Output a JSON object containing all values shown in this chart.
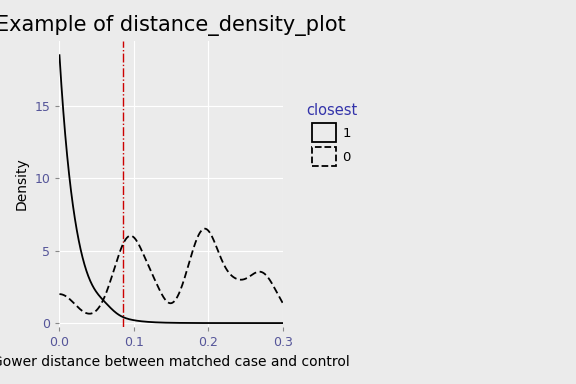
{
  "title": "Example of distance_density_plot",
  "xlabel": "Gower distance between matched case and control",
  "ylabel": "Density",
  "legend_title": "closest",
  "legend_labels": [
    "1",
    "0"
  ],
  "vline_x": 0.085,
  "vline_color": "#CC0000",
  "xlim": [
    0.0,
    0.3
  ],
  "ylim": [
    -0.3,
    19.5
  ],
  "xticks": [
    0.0,
    0.1,
    0.2,
    0.3
  ],
  "yticks": [
    0,
    5,
    10,
    15
  ],
  "bg_color": "#EBEBEB",
  "grid_color": "#FFFFFF",
  "line_color": "#000000",
  "title_fontsize": 15,
  "axis_label_fontsize": 10,
  "tick_fontsize": 9
}
